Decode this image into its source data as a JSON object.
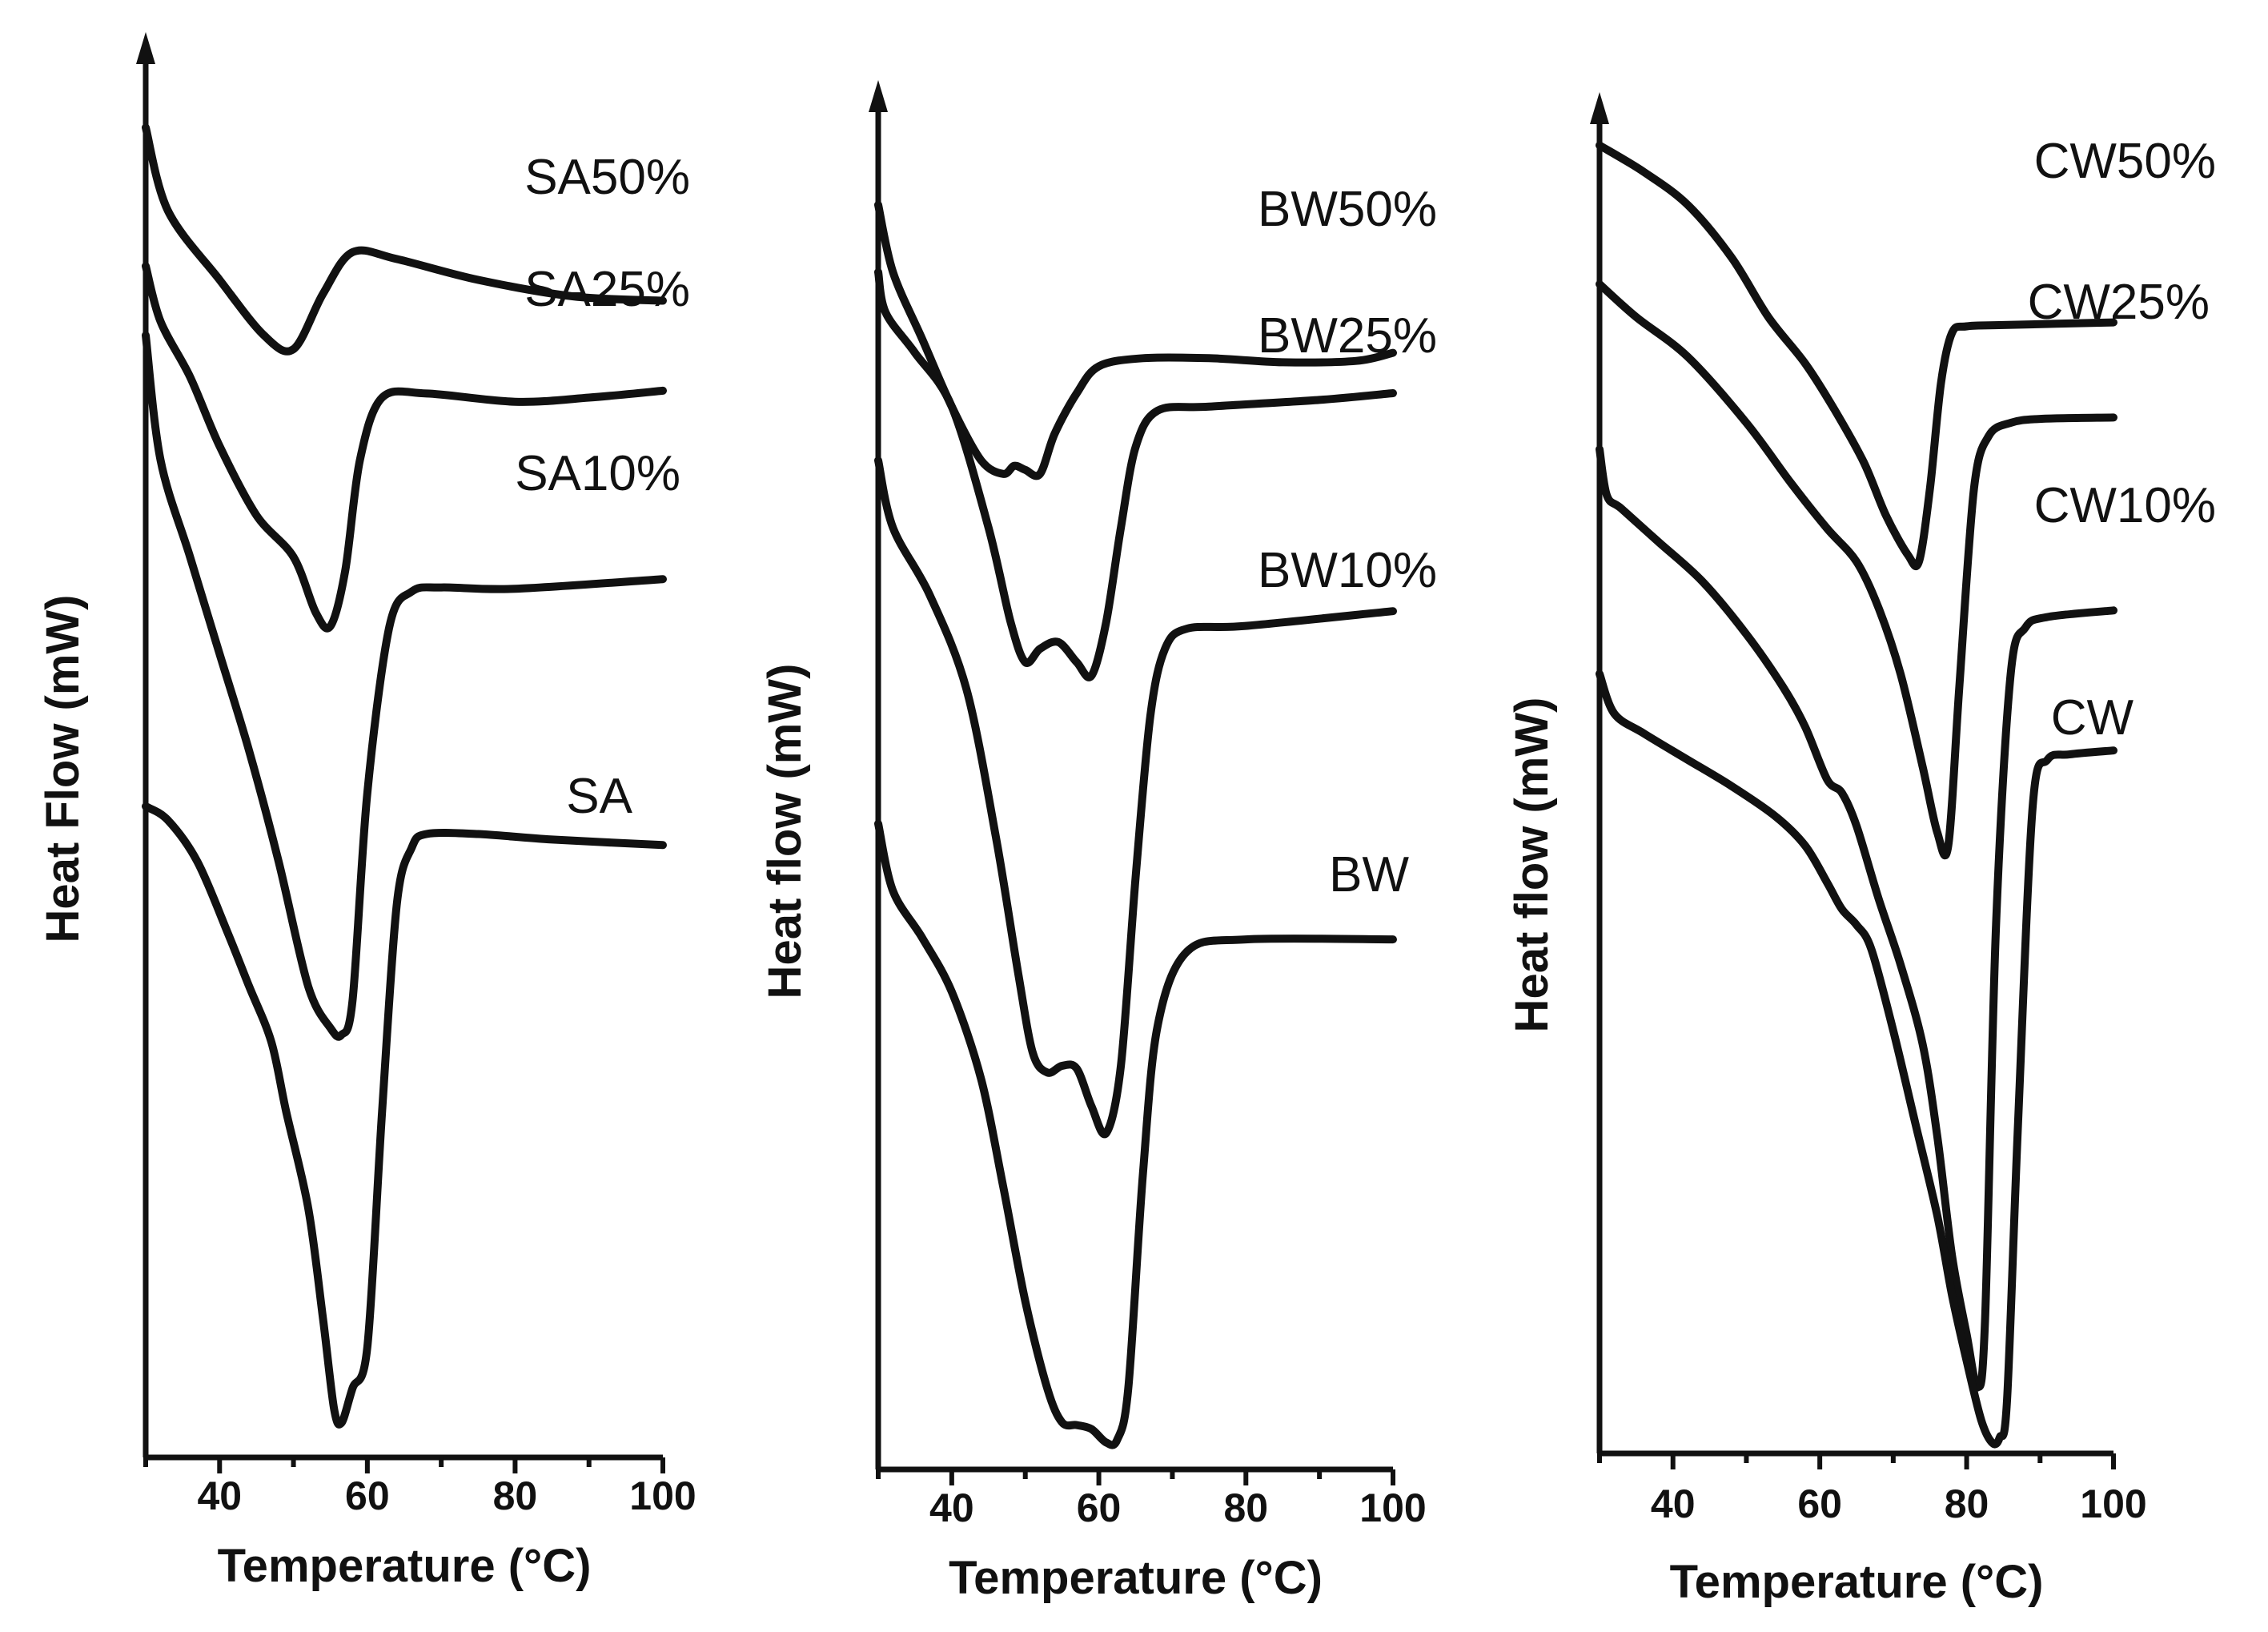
{
  "chart_data": [
    {
      "type": "line",
      "id": "sa",
      "title": "",
      "xlabel": "Temperature (°C)",
      "ylabel": "Heat Flow (mW)",
      "xlim": [
        30,
        100
      ],
      "ylim": [
        0,
        100
      ],
      "xticks": [
        40,
        60,
        80,
        100
      ],
      "series": [
        {
          "name": "SA50%",
          "x": [
            30,
            33,
            40,
            46,
            50,
            54,
            58,
            64,
            75,
            88,
            100
          ],
          "y": [
            96,
            90,
            85,
            81,
            80,
            84,
            87,
            86.5,
            85,
            83.8,
            83.5
          ]
        },
        {
          "name": "SA25%",
          "x": [
            30,
            32,
            36,
            40,
            45,
            50,
            53,
            55,
            57,
            59,
            62,
            68,
            80,
            90,
            100
          ],
          "y": [
            86,
            82,
            78,
            73,
            68,
            65,
            61,
            60,
            64,
            72,
            76.5,
            76.8,
            76.2,
            76.5,
            77
          ]
        },
        {
          "name": "SA10%",
          "x": [
            30,
            32,
            36,
            40,
            44,
            48,
            52,
            55,
            56.5,
            58,
            60,
            63,
            66,
            70,
            80,
            100
          ],
          "y": [
            81,
            72,
            65,
            58,
            51,
            43,
            34,
            31,
            30.5,
            33,
            48,
            60,
            62.5,
            62.8,
            62.7,
            63.4
          ]
        },
        {
          "name": "SA",
          "x": [
            30,
            33,
            37,
            41,
            44,
            47,
            49,
            52,
            54,
            55.5,
            56.5,
            58,
            60,
            62,
            64,
            66,
            68,
            75,
            85,
            100
          ],
          "y": [
            47,
            46,
            43,
            38,
            34,
            30,
            25,
            18,
            10,
            3.5,
            2.5,
            5,
            8,
            25,
            40,
            44,
            45,
            45,
            44.6,
            44.2
          ]
        }
      ]
    },
    {
      "type": "line",
      "id": "bw",
      "title": "",
      "xlabel": "Temperature (°C)",
      "ylabel": "Heat flow (mW)",
      "xlim": [
        30,
        100
      ],
      "ylim": [
        0,
        100
      ],
      "xticks": [
        40,
        60,
        80,
        100
      ],
      "series": [
        {
          "name": "BW50%",
          "x": [
            30,
            32,
            36,
            40,
            44,
            47,
            48.5,
            50,
            52,
            54,
            57,
            60,
            66,
            75,
            85,
            95,
            100
          ],
          "y": [
            94,
            89,
            84,
            79,
            75,
            74,
            74.6,
            74.3,
            74,
            77,
            80,
            82,
            82.6,
            82.6,
            82.3,
            82.4,
            83
          ]
        },
        {
          "name": "BW25%",
          "x": [
            30,
            31,
            35,
            40,
            45,
            48,
            50,
            52,
            54.5,
            57,
            59,
            61,
            63,
            65,
            68,
            75,
            90,
            100
          ],
          "y": [
            89,
            86,
            83,
            79,
            70,
            63,
            60,
            61,
            61.5,
            60,
            59,
            63,
            70,
            76,
            78.7,
            79,
            79.5,
            80
          ]
        },
        {
          "name": "BW10%",
          "x": [
            30,
            32,
            37,
            42,
            46,
            49,
            51,
            53,
            55,
            57,
            59,
            61,
            63,
            65,
            67,
            69,
            72,
            80,
            100
          ],
          "y": [
            75,
            70,
            65,
            58,
            47,
            37,
            31,
            29.5,
            30,
            29.8,
            27,
            25,
            30,
            44,
            56,
            61,
            62.5,
            62.7,
            63.8
          ]
        },
        {
          "name": "BW",
          "x": [
            30,
            32,
            36,
            40,
            44,
            47,
            50,
            53,
            55,
            57,
            59,
            61,
            62.5,
            64,
            66,
            68,
            72,
            80,
            100
          ],
          "y": [
            48,
            43,
            39.5,
            35.5,
            29,
            21,
            12.5,
            6,
            3.5,
            3.3,
            3,
            2,
            2.2,
            6,
            22,
            33,
            38.5,
            39.4,
            39.4
          ]
        }
      ]
    },
    {
      "type": "line",
      "id": "cw",
      "title": "",
      "xlabel": "Temperature (°C)",
      "ylabel": "Heat flow (mW)",
      "xlim": [
        30,
        100
      ],
      "ylim": [
        0,
        100
      ],
      "xticks": [
        40,
        60,
        80,
        100
      ],
      "series": [
        {
          "name": "CW50%",
          "x": [
            30,
            36,
            42,
            48,
            53,
            58,
            62,
            66,
            69,
            72,
            73.5,
            75,
            76.5,
            78,
            80,
            85,
            100
          ],
          "y": [
            99,
            97,
            94.5,
            90.5,
            86,
            82.5,
            79,
            75,
            71,
            68,
            67.5,
            73,
            81,
            84.8,
            85.3,
            85.4,
            85.6
          ]
        },
        {
          "name": "CW25%",
          "x": [
            30,
            35,
            42,
            50,
            56,
            61,
            65,
            68,
            71,
            74,
            76,
            77.5,
            79,
            81,
            83,
            86,
            90,
            100
          ],
          "y": [
            88.5,
            86,
            83,
            78,
            73.5,
            70,
            67.5,
            64,
            59,
            52,
            47,
            46,
            58,
            73,
            77,
            78,
            78.3,
            78.4
          ]
        },
        {
          "name": "CW10%",
          "x": [
            30,
            31,
            33,
            38,
            44,
            50,
            55,
            58,
            61,
            63,
            65,
            68,
            71,
            74,
            76,
            78,
            80,
            81.5,
            82.5,
            84,
            86,
            88,
            91,
            100
          ],
          "y": [
            76,
            72.5,
            71.5,
            69,
            66,
            62,
            58,
            55,
            51,
            50,
            47.5,
            42,
            37,
            31,
            24,
            15,
            9,
            5,
            10,
            40,
            59,
            62.5,
            63.3,
            63.8
          ]
        },
        {
          "name": "CW",
          "x": [
            30,
            32,
            36,
            42,
            48,
            54,
            58,
            61,
            63,
            65,
            67,
            70,
            73,
            76,
            78,
            80,
            82,
            83.5,
            84.5,
            85.5,
            87,
            89,
            91,
            94,
            100
          ],
          "y": [
            59,
            56,
            54.5,
            52.5,
            50.5,
            48.2,
            46,
            43.2,
            41.2,
            40,
            38.2,
            32,
            25,
            18,
            12,
            7,
            2.5,
            0.8,
            1.2,
            4,
            25,
            49,
            52.5,
            52.9,
            53.2
          ]
        }
      ]
    }
  ]
}
